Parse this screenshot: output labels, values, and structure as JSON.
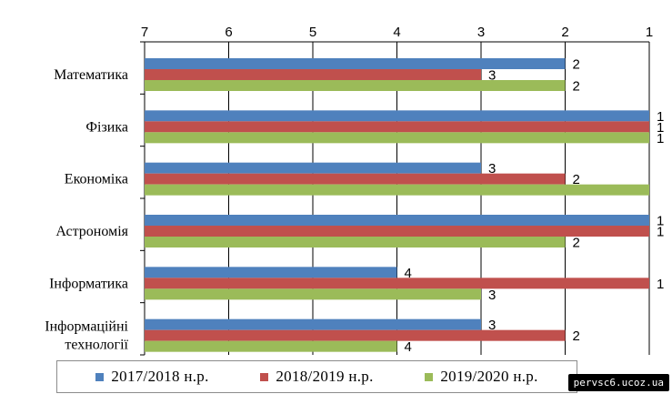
{
  "chart_data": {
    "type": "bar",
    "orientation": "horizontal",
    "x_axis_reversed": true,
    "x_axis_position": "top",
    "xlim": [
      1,
      7
    ],
    "xticks": [
      "7",
      "6",
      "5",
      "4",
      "3",
      "2",
      "1"
    ],
    "categories": [
      "Математика",
      "Фізика",
      "Економіка",
      "Астрономія",
      "Інформатика",
      "Інформаційні технології"
    ],
    "category_lines": [
      [
        "Математика"
      ],
      [
        "Фізика"
      ],
      [
        "Економіка"
      ],
      [
        "Астрономія"
      ],
      [
        "Інформатика"
      ],
      [
        "Інформаційні",
        "технології"
      ]
    ],
    "series": [
      {
        "name": "2017/2018  н.р.",
        "color": "#4f81bd",
        "values": [
          2,
          1,
          3,
          1,
          4,
          3
        ],
        "labels": [
          "2",
          "1",
          "3",
          "1",
          "4",
          "3"
        ]
      },
      {
        "name": "2018/2019  н.р.",
        "color": "#c0504d",
        "values": [
          3,
          1,
          2,
          1,
          1,
          2
        ],
        "labels": [
          "3",
          "1",
          "2",
          "1",
          "1",
          "2"
        ]
      },
      {
        "name": "2019/2020  н.р.",
        "color": "#9bbb59",
        "values": [
          2,
          1,
          1,
          2,
          3,
          4
        ],
        "labels": [
          "2",
          "1",
          "",
          "2",
          "3",
          "4"
        ]
      }
    ],
    "grid": true,
    "legend_position": "bottom"
  },
  "watermark": "pervsc6.ucoz.ua"
}
